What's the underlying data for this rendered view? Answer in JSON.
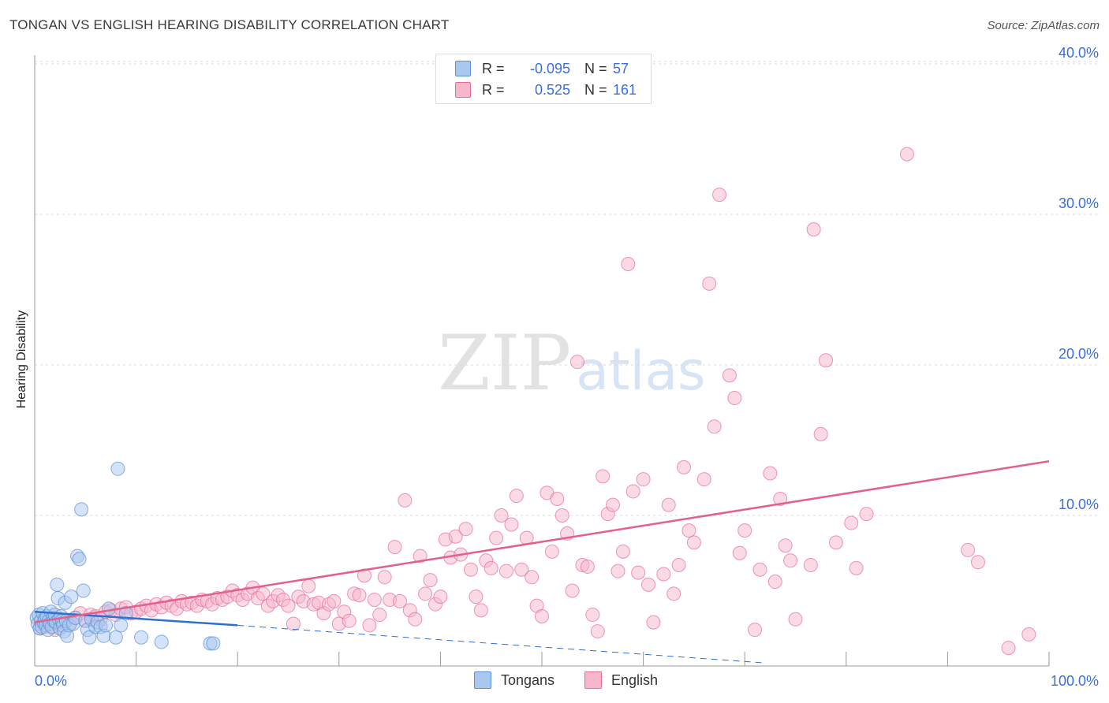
{
  "title": "TONGAN VS ENGLISH HEARING DISABILITY CORRELATION CHART",
  "source": "Source: ZipAtlas.com",
  "watermark": {
    "zip": "ZIP",
    "atlas": "atlas"
  },
  "legend": {
    "rows": [
      {
        "r_label": "R =",
        "r_value": "-0.095",
        "n_label": "N =",
        "n_value": "57",
        "color": "#a9c8f0"
      },
      {
        "r_label": "R =",
        "r_value": "0.525",
        "n_label": "N =",
        "n_value": "161",
        "color": "#f6b6cb"
      }
    ]
  },
  "bottom_legend": [
    {
      "label": "Tongans",
      "color": "#a9c8f0"
    },
    {
      "label": "English",
      "color": "#f6b6cb"
    }
  ],
  "chart_data": {
    "type": "scatter",
    "title": "TONGAN VS ENGLISH HEARING DISABILITY CORRELATION CHART",
    "xlabel": "",
    "ylabel": "Hearing Disability",
    "xlim": [
      0,
      100
    ],
    "ylim": [
      0,
      42
    ],
    "x_tick_labels": [
      "0.0%",
      "100.0%"
    ],
    "y_ticks": [
      10,
      20,
      30,
      40
    ],
    "y_tick_labels": [
      "10.0%",
      "20.0%",
      "30.0%",
      "40.0%"
    ],
    "grid": true,
    "series": [
      {
        "name": "Tongans",
        "color": "#5b8fd6",
        "fill": "#a9c8f0",
        "points": [
          [
            0.2,
            3.2
          ],
          [
            0.3,
            2.8
          ],
          [
            0.4,
            3.4
          ],
          [
            0.5,
            2.5
          ],
          [
            0.6,
            3.0
          ],
          [
            0.7,
            2.6
          ],
          [
            0.8,
            3.5
          ],
          [
            0.9,
            2.9
          ],
          [
            1.0,
            3.1
          ],
          [
            1.1,
            2.7
          ],
          [
            1.2,
            3.3
          ],
          [
            1.3,
            2.4
          ],
          [
            1.4,
            3.0
          ],
          [
            1.5,
            2.8
          ],
          [
            1.6,
            3.6
          ],
          [
            1.7,
            2.6
          ],
          [
            1.8,
            3.2
          ],
          [
            1.9,
            3.0
          ],
          [
            2.0,
            3.4
          ],
          [
            2.1,
            2.9
          ],
          [
            2.2,
            5.4
          ],
          [
            2.3,
            4.5
          ],
          [
            2.4,
            3.1
          ],
          [
            2.5,
            2.5
          ],
          [
            2.6,
            3.3
          ],
          [
            2.7,
            3.0
          ],
          [
            2.8,
            2.7
          ],
          [
            2.9,
            2.3
          ],
          [
            3.0,
            4.2
          ],
          [
            3.1,
            3.0
          ],
          [
            3.2,
            2.0
          ],
          [
            3.4,
            2.7
          ],
          [
            3.6,
            4.6
          ],
          [
            3.8,
            2.8
          ],
          [
            4.0,
            3.2
          ],
          [
            4.2,
            7.3
          ],
          [
            4.4,
            7.1
          ],
          [
            4.6,
            10.4
          ],
          [
            4.8,
            5.0
          ],
          [
            5.0,
            3.0
          ],
          [
            5.2,
            2.4
          ],
          [
            5.4,
            1.9
          ],
          [
            5.6,
            3.1
          ],
          [
            6.0,
            2.6
          ],
          [
            6.2,
            2.9
          ],
          [
            6.5,
            2.6
          ],
          [
            6.8,
            2.0
          ],
          [
            7.0,
            2.7
          ],
          [
            7.3,
            3.8
          ],
          [
            8.0,
            1.9
          ],
          [
            8.2,
            13.1
          ],
          [
            8.5,
            2.7
          ],
          [
            10.5,
            1.9
          ],
          [
            12.5,
            1.6
          ],
          [
            17.3,
            1.5
          ],
          [
            17.6,
            1.5
          ],
          [
            9.0,
            3.5
          ]
        ]
      },
      {
        "name": "English",
        "color": "#e86b95",
        "fill": "#f6b6cb",
        "points": [
          [
            0.5,
            2.5
          ],
          [
            1.0,
            2.6
          ],
          [
            1.5,
            2.9
          ],
          [
            2.0,
            2.4
          ],
          [
            2.5,
            2.7
          ],
          [
            3.0,
            3.0
          ],
          [
            3.5,
            2.8
          ],
          [
            4.0,
            3.2
          ],
          [
            4.5,
            3.5
          ],
          [
            5.0,
            3.0
          ],
          [
            5.5,
            3.4
          ],
          [
            6.0,
            3.3
          ],
          [
            6.5,
            3.1
          ],
          [
            7.0,
            3.6
          ],
          [
            7.5,
            3.7
          ],
          [
            8.0,
            3.4
          ],
          [
            8.5,
            3.8
          ],
          [
            9.0,
            3.9
          ],
          [
            9.5,
            3.5
          ],
          [
            10.0,
            3.6
          ],
          [
            10.5,
            3.8
          ],
          [
            11.0,
            4.0
          ],
          [
            11.5,
            3.7
          ],
          [
            12.0,
            4.1
          ],
          [
            12.5,
            3.9
          ],
          [
            13.0,
            4.2
          ],
          [
            13.5,
            4.0
          ],
          [
            14.0,
            3.8
          ],
          [
            14.5,
            4.3
          ],
          [
            15.0,
            4.1
          ],
          [
            15.5,
            4.2
          ],
          [
            16.0,
            4.0
          ],
          [
            16.5,
            4.4
          ],
          [
            17.0,
            4.3
          ],
          [
            17.5,
            4.1
          ],
          [
            18.0,
            4.5
          ],
          [
            18.5,
            4.4
          ],
          [
            19.0,
            4.6
          ],
          [
            19.5,
            5.0
          ],
          [
            20.0,
            4.7
          ],
          [
            20.5,
            4.4
          ],
          [
            21.0,
            4.8
          ],
          [
            21.5,
            5.2
          ],
          [
            22.0,
            4.5
          ],
          [
            22.5,
            4.8
          ],
          [
            23.0,
            4.0
          ],
          [
            23.5,
            4.3
          ],
          [
            24.0,
            4.7
          ],
          [
            24.5,
            4.4
          ],
          [
            25.0,
            4.0
          ],
          [
            25.5,
            2.8
          ],
          [
            26.0,
            4.6
          ],
          [
            26.5,
            4.3
          ],
          [
            27.0,
            5.3
          ],
          [
            27.5,
            4.1
          ],
          [
            28.0,
            4.2
          ],
          [
            28.5,
            3.5
          ],
          [
            29.0,
            4.1
          ],
          [
            29.5,
            4.3
          ],
          [
            30.0,
            2.8
          ],
          [
            30.5,
            3.6
          ],
          [
            31.0,
            3.0
          ],
          [
            31.5,
            4.8
          ],
          [
            32.0,
            4.7
          ],
          [
            32.5,
            6.0
          ],
          [
            33.0,
            2.7
          ],
          [
            33.5,
            4.4
          ],
          [
            34.0,
            3.4
          ],
          [
            34.5,
            5.9
          ],
          [
            35.0,
            4.4
          ],
          [
            35.5,
            7.9
          ],
          [
            36.0,
            4.3
          ],
          [
            36.5,
            11.0
          ],
          [
            37.0,
            3.7
          ],
          [
            37.5,
            3.1
          ],
          [
            38.0,
            7.3
          ],
          [
            38.5,
            4.8
          ],
          [
            39.0,
            5.7
          ],
          [
            39.5,
            4.1
          ],
          [
            40.0,
            4.6
          ],
          [
            40.5,
            8.4
          ],
          [
            41.0,
            7.2
          ],
          [
            41.5,
            8.6
          ],
          [
            42.0,
            7.4
          ],
          [
            42.5,
            9.1
          ],
          [
            43.0,
            6.4
          ],
          [
            43.5,
            4.6
          ],
          [
            44.0,
            3.7
          ],
          [
            44.5,
            7.0
          ],
          [
            45.0,
            6.5
          ],
          [
            45.5,
            8.5
          ],
          [
            46.0,
            10.0
          ],
          [
            46.5,
            6.3
          ],
          [
            47.0,
            9.4
          ],
          [
            47.5,
            11.3
          ],
          [
            48.0,
            6.4
          ],
          [
            48.5,
            8.5
          ],
          [
            49.0,
            5.9
          ],
          [
            49.5,
            4.0
          ],
          [
            50.0,
            3.3
          ],
          [
            50.5,
            11.5
          ],
          [
            51.0,
            7.6
          ],
          [
            51.5,
            11.1
          ],
          [
            52.0,
            10.0
          ],
          [
            52.5,
            8.8
          ],
          [
            53.0,
            5.0
          ],
          [
            53.5,
            20.2
          ],
          [
            54.0,
            6.7
          ],
          [
            54.5,
            6.6
          ],
          [
            55.0,
            3.4
          ],
          [
            55.5,
            2.3
          ],
          [
            56.0,
            12.6
          ],
          [
            56.5,
            10.1
          ],
          [
            57.0,
            10.7
          ],
          [
            57.5,
            6.3
          ],
          [
            58.0,
            7.6
          ],
          [
            58.5,
            26.7
          ],
          [
            59.0,
            11.6
          ],
          [
            59.5,
            6.2
          ],
          [
            60.0,
            12.4
          ],
          [
            60.5,
            5.4
          ],
          [
            61.0,
            2.9
          ],
          [
            62.0,
            6.1
          ],
          [
            62.5,
            10.7
          ],
          [
            63.0,
            4.8
          ],
          [
            63.5,
            6.7
          ],
          [
            64.0,
            13.2
          ],
          [
            64.5,
            9.0
          ],
          [
            65.0,
            8.2
          ],
          [
            66.0,
            12.4
          ],
          [
            66.5,
            25.4
          ],
          [
            67.0,
            15.9
          ],
          [
            67.5,
            31.3
          ],
          [
            68.5,
            19.3
          ],
          [
            69.0,
            17.8
          ],
          [
            69.5,
            7.5
          ],
          [
            70.0,
            9.0
          ],
          [
            71.0,
            2.4
          ],
          [
            71.5,
            6.4
          ],
          [
            72.5,
            12.8
          ],
          [
            73.0,
            5.6
          ],
          [
            73.5,
            11.1
          ],
          [
            74.0,
            8.0
          ],
          [
            74.5,
            7.0
          ],
          [
            75.0,
            3.1
          ],
          [
            76.5,
            6.7
          ],
          [
            76.8,
            29.0
          ],
          [
            77.5,
            15.4
          ],
          [
            78.0,
            20.3
          ],
          [
            79.0,
            8.2
          ],
          [
            80.5,
            9.5
          ],
          [
            81.0,
            6.5
          ],
          [
            82.0,
            10.1
          ],
          [
            86.0,
            34.0
          ],
          [
            92.0,
            7.7
          ],
          [
            93.0,
            6.9
          ],
          [
            96.0,
            1.2
          ],
          [
            98.0,
            2.1
          ]
        ]
      }
    ],
    "trendlines": [
      {
        "series": "Tongans",
        "from": [
          0,
          3.6
        ],
        "to": [
          20,
          2.7
        ],
        "dashed_to": [
          72,
          0.2
        ]
      },
      {
        "series": "English",
        "from": [
          0,
          2.9
        ],
        "to": [
          100,
          13.6
        ]
      }
    ]
  }
}
